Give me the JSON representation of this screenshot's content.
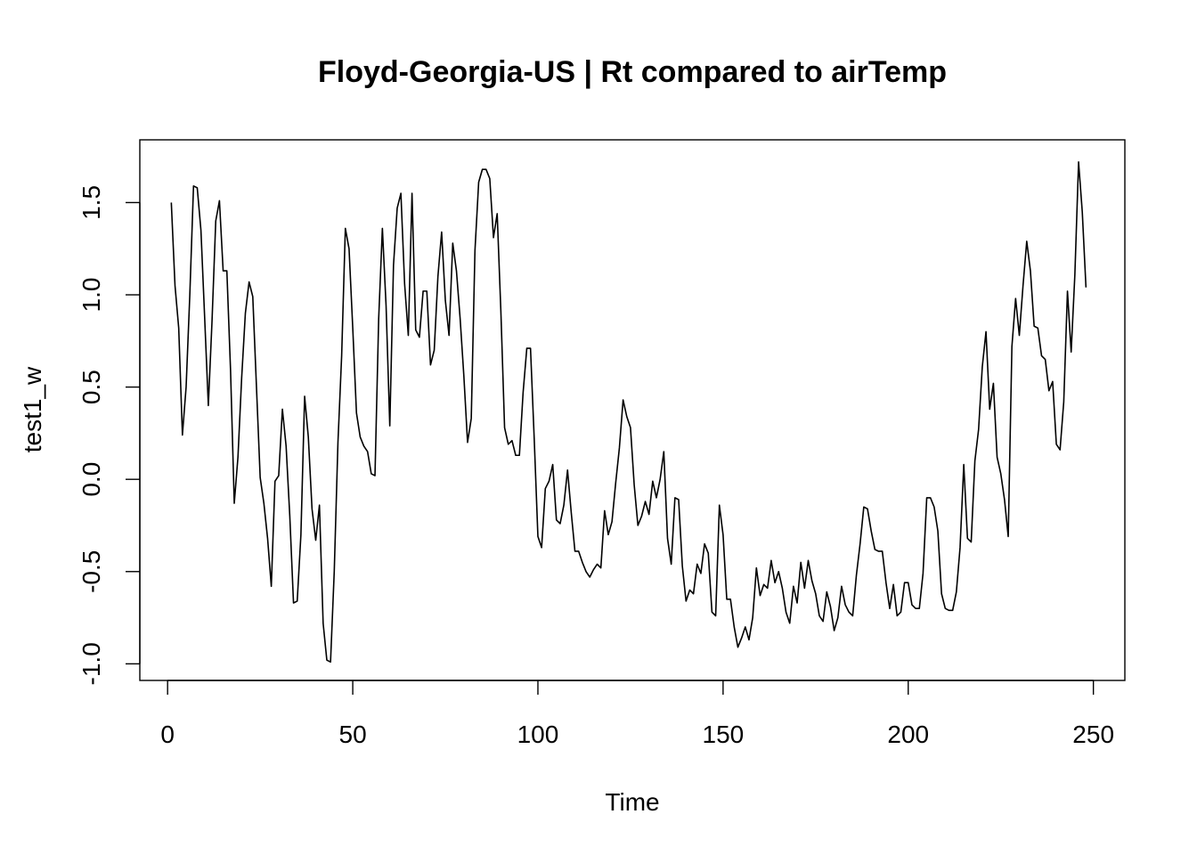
{
  "chart_data": {
    "type": "line",
    "title": "Floyd-Georgia-US | Rt compared to airTemp",
    "xlabel": "Time",
    "ylabel": "test1_w",
    "xlim": [
      -7.5,
      258.5
    ],
    "ylim": [
      -1.09,
      1.84
    ],
    "x_ticks": [
      0,
      50,
      100,
      150,
      200,
      250
    ],
    "x_tick_labels": [
      "0",
      "50",
      "100",
      "150",
      "200",
      "250"
    ],
    "y_ticks": [
      -1.0,
      -0.5,
      0.0,
      0.5,
      1.0,
      1.5
    ],
    "y_tick_labels": [
      "-1.0",
      "-0.5",
      "0.0",
      "0.5",
      "1.0",
      "1.5"
    ],
    "grid": false,
    "legend": "none",
    "line_color": "#000000",
    "x": [
      1,
      2,
      3,
      4,
      5,
      6,
      7,
      8,
      9,
      10,
      11,
      12,
      13,
      14,
      15,
      16,
      17,
      18,
      19,
      20,
      21,
      22,
      23,
      24,
      25,
      26,
      27,
      28,
      29,
      30,
      31,
      32,
      33,
      34,
      35,
      36,
      37,
      38,
      39,
      40,
      41,
      42,
      43,
      44,
      45,
      46,
      47,
      48,
      49,
      50,
      51,
      52,
      53,
      54,
      55,
      56,
      57,
      58,
      59,
      60,
      61,
      62,
      63,
      64,
      65,
      66,
      67,
      68,
      69,
      70,
      71,
      72,
      73,
      74,
      75,
      76,
      77,
      78,
      79,
      80,
      81,
      82,
      83,
      84,
      85,
      86,
      87,
      88,
      89,
      90,
      91,
      92,
      93,
      94,
      95,
      96,
      97,
      98,
      99,
      100,
      101,
      102,
      103,
      104,
      105,
      106,
      107,
      108,
      109,
      110,
      111,
      112,
      113,
      114,
      115,
      116,
      117,
      118,
      119,
      120,
      121,
      122,
      123,
      124,
      125,
      126,
      127,
      128,
      129,
      130,
      131,
      132,
      133,
      134,
      135,
      136,
      137,
      138,
      139,
      140,
      141,
      142,
      143,
      144,
      145,
      146,
      147,
      148,
      149,
      150,
      151,
      152,
      153,
      154,
      155,
      156,
      157,
      158,
      159,
      160,
      161,
      162,
      163,
      164,
      165,
      166,
      167,
      168,
      169,
      170,
      171,
      172,
      173,
      174,
      175,
      176,
      177,
      178,
      179,
      180,
      181,
      182,
      183,
      184,
      185,
      186,
      187,
      188,
      189,
      190,
      191,
      192,
      193,
      194,
      195,
      196,
      197,
      198,
      199,
      200,
      201,
      202,
      203,
      204,
      205,
      206,
      207,
      208,
      209,
      210,
      211,
      212,
      213,
      214,
      215,
      216,
      217,
      218,
      219,
      220,
      221,
      222,
      223,
      224,
      225,
      226,
      227,
      228,
      229,
      230,
      231,
      232,
      233,
      234,
      235,
      236,
      237,
      238,
      239,
      240,
      241,
      242,
      243,
      244,
      245,
      246,
      247,
      248
    ],
    "y": [
      1.5,
      1.05,
      0.82,
      0.24,
      0.5,
      1.0,
      1.59,
      1.58,
      1.35,
      0.88,
      0.4,
      0.86,
      1.4,
      1.51,
      1.13,
      1.13,
      0.59,
      -0.13,
      0.12,
      0.55,
      0.9,
      1.07,
      0.99,
      0.5,
      0.01,
      -0.13,
      -0.32,
      -0.58,
      -0.01,
      0.02,
      0.38,
      0.18,
      -0.2,
      -0.67,
      -0.66,
      -0.3,
      0.45,
      0.23,
      -0.16,
      -0.33,
      -0.14,
      -0.78,
      -0.98,
      -0.99,
      -0.5,
      0.2,
      0.67,
      1.36,
      1.25,
      0.82,
      0.36,
      0.23,
      0.18,
      0.15,
      0.03,
      0.02,
      0.87,
      1.36,
      0.94,
      0.29,
      1.16,
      1.47,
      1.55,
      1.06,
      0.78,
      1.55,
      0.81,
      0.77,
      1.02,
      1.02,
      0.62,
      0.7,
      1.1,
      1.34,
      0.97,
      0.78,
      1.28,
      1.13,
      0.87,
      0.56,
      0.2,
      0.33,
      1.24,
      1.61,
      1.68,
      1.68,
      1.63,
      1.31,
      1.44,
      0.91,
      0.28,
      0.19,
      0.21,
      0.13,
      0.13,
      0.47,
      0.71,
      0.71,
      0.22,
      -0.31,
      -0.37,
      -0.05,
      -0.01,
      0.08,
      -0.22,
      -0.24,
      -0.14,
      0.05,
      -0.18,
      -0.39,
      -0.39,
      -0.45,
      -0.5,
      -0.53,
      -0.49,
      -0.46,
      -0.48,
      -0.17,
      -0.3,
      -0.23,
      -0.02,
      0.17,
      0.43,
      0.34,
      0.28,
      -0.03,
      -0.25,
      -0.2,
      -0.12,
      -0.19,
      -0.01,
      -0.1,
      0.0,
      0.15,
      -0.32,
      -0.46,
      -0.1,
      -0.11,
      -0.47,
      -0.66,
      -0.6,
      -0.62,
      -0.46,
      -0.51,
      -0.35,
      -0.4,
      -0.72,
      -0.74,
      -0.14,
      -0.3,
      -0.65,
      -0.65,
      -0.8,
      -0.91,
      -0.86,
      -0.8,
      -0.87,
      -0.75,
      -0.48,
      -0.63,
      -0.57,
      -0.59,
      -0.44,
      -0.56,
      -0.5,
      -0.59,
      -0.72,
      -0.78,
      -0.58,
      -0.67,
      -0.45,
      -0.59,
      -0.44,
      -0.55,
      -0.62,
      -0.74,
      -0.77,
      -0.61,
      -0.69,
      -0.82,
      -0.75,
      -0.58,
      -0.68,
      -0.72,
      -0.74,
      -0.52,
      -0.35,
      -0.15,
      -0.16,
      -0.28,
      -0.38,
      -0.39,
      -0.39,
      -0.56,
      -0.7,
      -0.57,
      -0.74,
      -0.72,
      -0.56,
      -0.56,
      -0.68,
      -0.7,
      -0.7,
      -0.51,
      -0.1,
      -0.1,
      -0.15,
      -0.28,
      -0.62,
      -0.7,
      -0.71,
      -0.71,
      -0.61,
      -0.37,
      0.08,
      -0.32,
      -0.34,
      0.1,
      0.27,
      0.61,
      0.8,
      0.38,
      0.52,
      0.12,
      0.03,
      -0.11,
      -0.31,
      0.72,
      0.98,
      0.78,
      1.05,
      1.29,
      1.13,
      0.83,
      0.82,
      0.67,
      0.65,
      0.48,
      0.53,
      0.19,
      0.16,
      0.42,
      1.02,
      0.69,
      1.11,
      1.72,
      1.45,
      1.04
    ]
  }
}
